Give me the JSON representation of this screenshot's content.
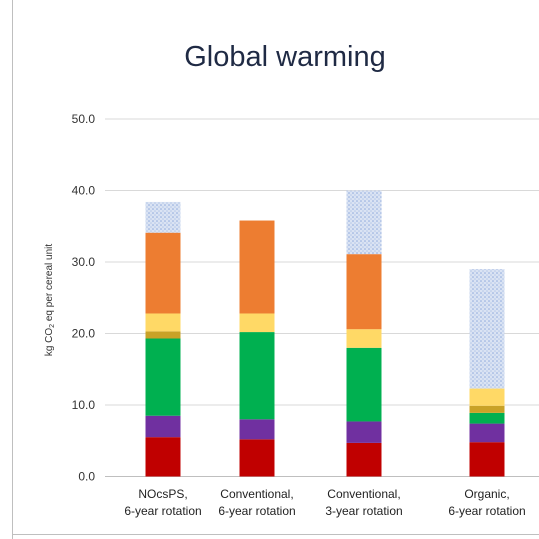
{
  "chart_data": {
    "type": "bar",
    "stacked": true,
    "title": "Global warming",
    "ylabel_main": "kg CO",
    "ylabel_sub": "2",
    "ylabel_rest": " eq per cereal unit",
    "ylim": [
      0,
      50
    ],
    "yticks": [
      "0.0",
      "10.0",
      "20.0",
      "30.0",
      "40.0",
      "50.0"
    ],
    "grid": true,
    "categories": [
      {
        "line1": "NOcsPS,",
        "line2": "6-year rotation"
      },
      {
        "line1": "Conventional,",
        "line2": "6-year rotation"
      },
      {
        "line1": "Conventional,",
        "line2": "3-year rotation"
      },
      {
        "line1": "Organic,",
        "line2": "6-year rotation"
      }
    ],
    "series": [
      {
        "color": "#c00000",
        "values": [
          5.5,
          5.2,
          4.7,
          4.8
        ]
      },
      {
        "color": "#7030a0",
        "values": [
          3.0,
          2.8,
          3.0,
          2.6
        ]
      },
      {
        "color": "#00b050",
        "values": [
          10.8,
          12.2,
          10.3,
          1.5
        ]
      },
      {
        "color": "#c9a227",
        "values": [
          1.0,
          0.0,
          0.0,
          1.0
        ]
      },
      {
        "color": "#ffd966",
        "values": [
          2.5,
          2.6,
          2.6,
          2.4
        ]
      },
      {
        "color": "#ed7d31",
        "values": [
          11.3,
          13.0,
          10.5,
          0.0
        ]
      },
      {
        "color": "#dae3f3",
        "pattern": "dots",
        "values": [
          4.3,
          0.0,
          8.9,
          16.7
        ]
      }
    ]
  }
}
